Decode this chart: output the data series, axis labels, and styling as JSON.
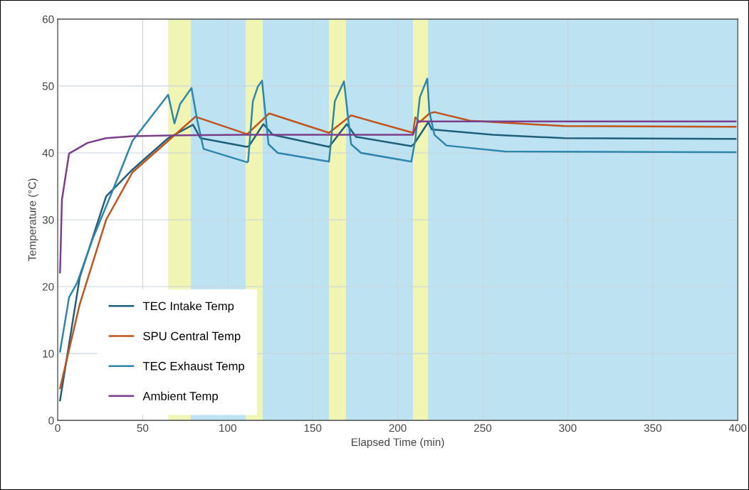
{
  "chart_data": {
    "type": "line",
    "xlabel": "Elapsed Time (min)",
    "ylabel": "Temperature (°C)",
    "xlim": [
      0,
      400
    ],
    "ylim": [
      0,
      60
    ],
    "xticks": [
      0,
      50,
      100,
      150,
      200,
      250,
      300,
      350,
      400
    ],
    "yticks": [
      0,
      10,
      20,
      30,
      40,
      50,
      60
    ],
    "grid": true,
    "legend": "bottom left",
    "bands": [
      {
        "axis": "x",
        "from": 65,
        "to": 78.3,
        "color": "#f0f5b4"
      },
      {
        "axis": "x",
        "from": 78.3,
        "to": 110.6,
        "color": "#bde3f3"
      },
      {
        "axis": "x",
        "from": 110.6,
        "to": 120.6,
        "color": "#f0f5b4"
      },
      {
        "axis": "x",
        "from": 120.6,
        "to": 159.6,
        "color": "#bde3f3"
      },
      {
        "axis": "x",
        "from": 159.6,
        "to": 169.6,
        "color": "#f0f5b4"
      },
      {
        "axis": "x",
        "from": 169.6,
        "to": 209,
        "color": "#bde3f3"
      },
      {
        "axis": "x",
        "from": 209,
        "to": 217.8,
        "color": "#f0f5b4"
      },
      {
        "axis": "x",
        "from": 217.8,
        "to": 400,
        "color": "#bde3f3"
      }
    ],
    "series": [
      {
        "name": "TEC Intake Temp",
        "color": "#1f5f7a",
        "x": [
          1.4,
          13,
          28.5,
          44,
          65,
          79.6,
          84,
          111.4,
          112.7,
          121,
          126.5,
          159.6,
          160.5,
          170,
          175.5,
          208,
          209.5,
          218,
          220,
          256,
          298,
          398.7
        ],
        "values": [
          3.0,
          21.4,
          33.5,
          37.5,
          42.2,
          44.2,
          42.2,
          40.9,
          41.1,
          44.3,
          42.7,
          40.9,
          41.2,
          44.3,
          42.4,
          41.0,
          41.3,
          44.6,
          43.5,
          42.7,
          42.2,
          42.1
        ]
      },
      {
        "name": "SPU Central Temp",
        "color": "#c0541c",
        "x": [
          1.4,
          13,
          28.5,
          44,
          65,
          81,
          111.4,
          124.4,
          159.6,
          172.6,
          209,
          210.3,
          213,
          218.6,
          221.6,
          242.5,
          298,
          398.7
        ],
        "values": [
          4.8,
          17.4,
          30.0,
          37.1,
          41.8,
          45.4,
          42.8,
          45.9,
          43.0,
          45.6,
          43.0,
          45.3,
          44.6,
          45.9,
          46.1,
          44.8,
          44.0,
          43.9
        ]
      },
      {
        "name": "TEC Exhaust Temp",
        "color": "#2e86ab",
        "x": [
          1.4,
          6.7,
          11.3,
          20.7,
          31.6,
          44,
          65,
          68.7,
          72,
          78.7,
          82,
          85.8,
          111.4,
          112,
          114.8,
          117.7,
          120.2,
          124,
          129.4,
          159.6,
          163,
          168.4,
          172.6,
          178.4,
          208,
          210.3,
          213,
          217.4,
          218.6,
          221.6,
          228.7,
          263,
          398.7
        ],
        "values": [
          10.3,
          18.4,
          20.5,
          27.2,
          33.9,
          41.8,
          48.7,
          44.4,
          47.3,
          49.7,
          45.0,
          40.6,
          38.6,
          38.7,
          47.7,
          49.9,
          50.8,
          41.3,
          40.0,
          38.7,
          47.7,
          50.7,
          41.3,
          40.0,
          38.7,
          41.9,
          48.3,
          51.1,
          46.2,
          42.7,
          41.1,
          40.2,
          40.1
        ]
      },
      {
        "name": "Ambient Temp",
        "color": "#7b3f8c",
        "x": [
          1.4,
          2.5,
          6.7,
          17.6,
          28.5,
          44,
          65,
          110,
          160,
          209,
          212,
          220,
          300,
          398.7
        ],
        "values": [
          22.1,
          33.0,
          39.9,
          41.5,
          42.2,
          42.5,
          42.6,
          42.7,
          42.7,
          42.7,
          44.7,
          44.7,
          44.7,
          44.7
        ]
      }
    ]
  }
}
